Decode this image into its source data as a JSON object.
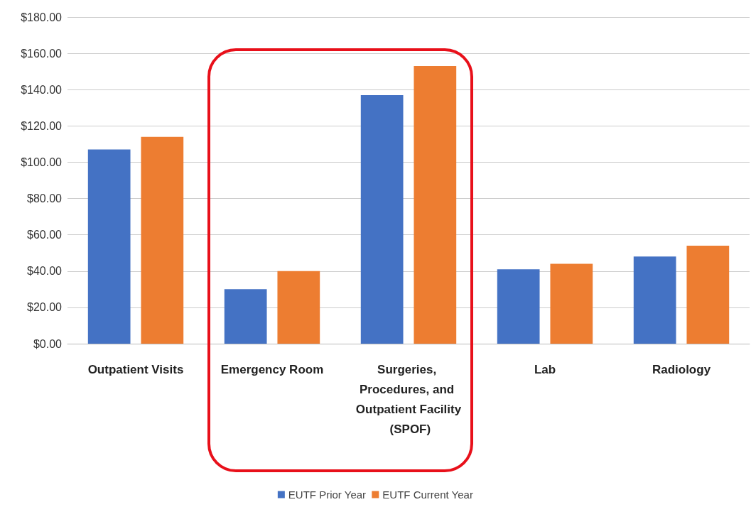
{
  "chart_data": {
    "type": "bar",
    "categories": [
      "Outpatient Visits",
      "Emergency Room",
      "Surgeries, Procedures, and Outpatient Facility (SPOF)",
      "Lab",
      "Radiology"
    ],
    "series": [
      {
        "name": "EUTF Prior Year",
        "color": "#4472c4",
        "values": [
          107,
          30,
          137,
          41,
          48
        ]
      },
      {
        "name": "EUTF Current Year",
        "color": "#ed7d31",
        "values": [
          114,
          40,
          153,
          44,
          54
        ]
      }
    ],
    "ylim": [
      0,
      180
    ],
    "yticks": [
      {
        "value": 0,
        "label": "$0.00"
      },
      {
        "value": 20,
        "label": "$20.00"
      },
      {
        "value": 40,
        "label": "$40.00"
      },
      {
        "value": 60,
        "label": "$60.00"
      },
      {
        "value": 80,
        "label": "$80.00"
      },
      {
        "value": 100,
        "label": "$100.00"
      },
      {
        "value": 120,
        "label": "$120.00"
      },
      {
        "value": 140,
        "label": "$140.00"
      },
      {
        "value": 160,
        "label": "$160.00"
      },
      {
        "value": 180,
        "label": "$180.00"
      }
    ],
    "grid": "y",
    "legend": "bottom"
  }
}
